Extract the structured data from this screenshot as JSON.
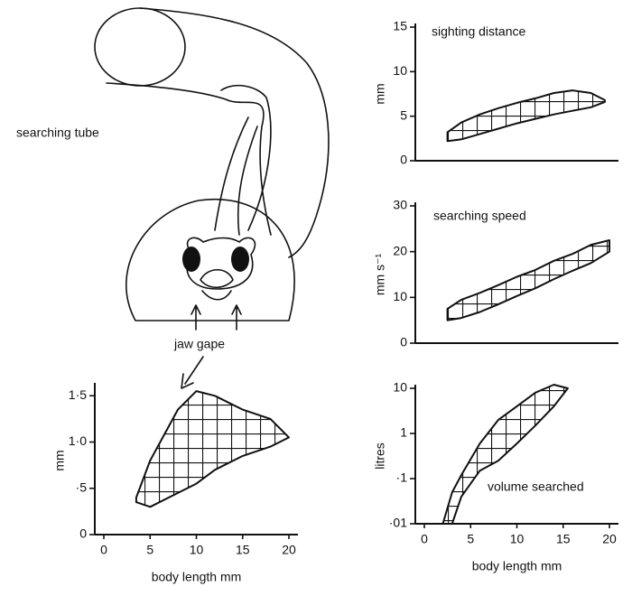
{
  "illustration": {
    "labels": [
      "searching tube",
      "jaw gape"
    ]
  },
  "chart_data": [
    {
      "type": "band",
      "annotation": null,
      "ylabel": "mm",
      "xlabel": "body length mm",
      "xlim": [
        0,
        20
      ],
      "ylim": [
        0,
        1.6
      ],
      "xticks": [
        0,
        5,
        10,
        15,
        20
      ],
      "yticks": [
        0,
        {
          "value": 0.5,
          "label": "·5"
        },
        {
          "value": 1.0,
          "label": "1·0"
        },
        {
          "value": 1.5,
          "label": "1·5"
        }
      ],
      "x": [
        3.5,
        5,
        8,
        10,
        12,
        15,
        18,
        20
      ],
      "low": [
        0.35,
        0.3,
        0.45,
        0.55,
        0.7,
        0.85,
        0.95,
        1.05
      ],
      "high": [
        0.4,
        0.8,
        1.35,
        1.55,
        1.5,
        1.35,
        1.25,
        1.05
      ],
      "color": "#111111"
    },
    {
      "type": "band",
      "annotation": "sighting distance",
      "ylabel": "mm",
      "xlim": [
        0,
        20
      ],
      "ylim": [
        0,
        15
      ],
      "yticks": [
        0,
        5,
        10,
        15
      ],
      "x": [
        2.5,
        4,
        6,
        8,
        10,
        12,
        14,
        16,
        18,
        19.5
      ],
      "low": [
        2.2,
        2.4,
        3.0,
        3.6,
        4.2,
        4.7,
        5.2,
        5.6,
        6.0,
        6.6
      ],
      "high": [
        3.2,
        4.3,
        5.2,
        5.9,
        6.5,
        7.0,
        7.6,
        7.9,
        7.6,
        6.8
      ],
      "color": "#111111"
    },
    {
      "type": "band",
      "annotation": "searching speed",
      "ylabel": "mm s⁻¹",
      "xlim": [
        0,
        20
      ],
      "ylim": [
        0,
        30
      ],
      "yticks": [
        0,
        10,
        20,
        30
      ],
      "x": [
        2.5,
        4,
        6,
        8,
        10,
        12,
        14,
        16,
        18,
        20
      ],
      "low": [
        5,
        5.5,
        6.8,
        8.5,
        10.3,
        12,
        14,
        15.8,
        17.5,
        20
      ],
      "high": [
        7.5,
        9.5,
        11,
        12.7,
        14.5,
        16,
        18,
        19.5,
        21.5,
        22.5
      ],
      "color": "#111111"
    },
    {
      "type": "band",
      "annotation": "volume searched",
      "ylabel": "litres",
      "xlabel": "body length mm",
      "log_y": true,
      "xlim": [
        0,
        20
      ],
      "ylim": [
        0.01,
        10
      ],
      "xticks": [
        0,
        5,
        10,
        15,
        20
      ],
      "yticks": [
        {
          "value": 0.01,
          "label": "·01"
        },
        {
          "value": 0.1,
          "label": "·1"
        },
        1,
        10
      ],
      "x": [
        2,
        3,
        4,
        6,
        8,
        10,
        12,
        14,
        15.5
      ],
      "low": [
        0.01,
        0.01,
        0.04,
        0.15,
        0.25,
        0.6,
        1.5,
        4,
        10
      ],
      "high": [
        0.01,
        0.05,
        0.12,
        0.6,
        2,
        4,
        8,
        12,
        10
      ],
      "color": "#111111"
    }
  ]
}
